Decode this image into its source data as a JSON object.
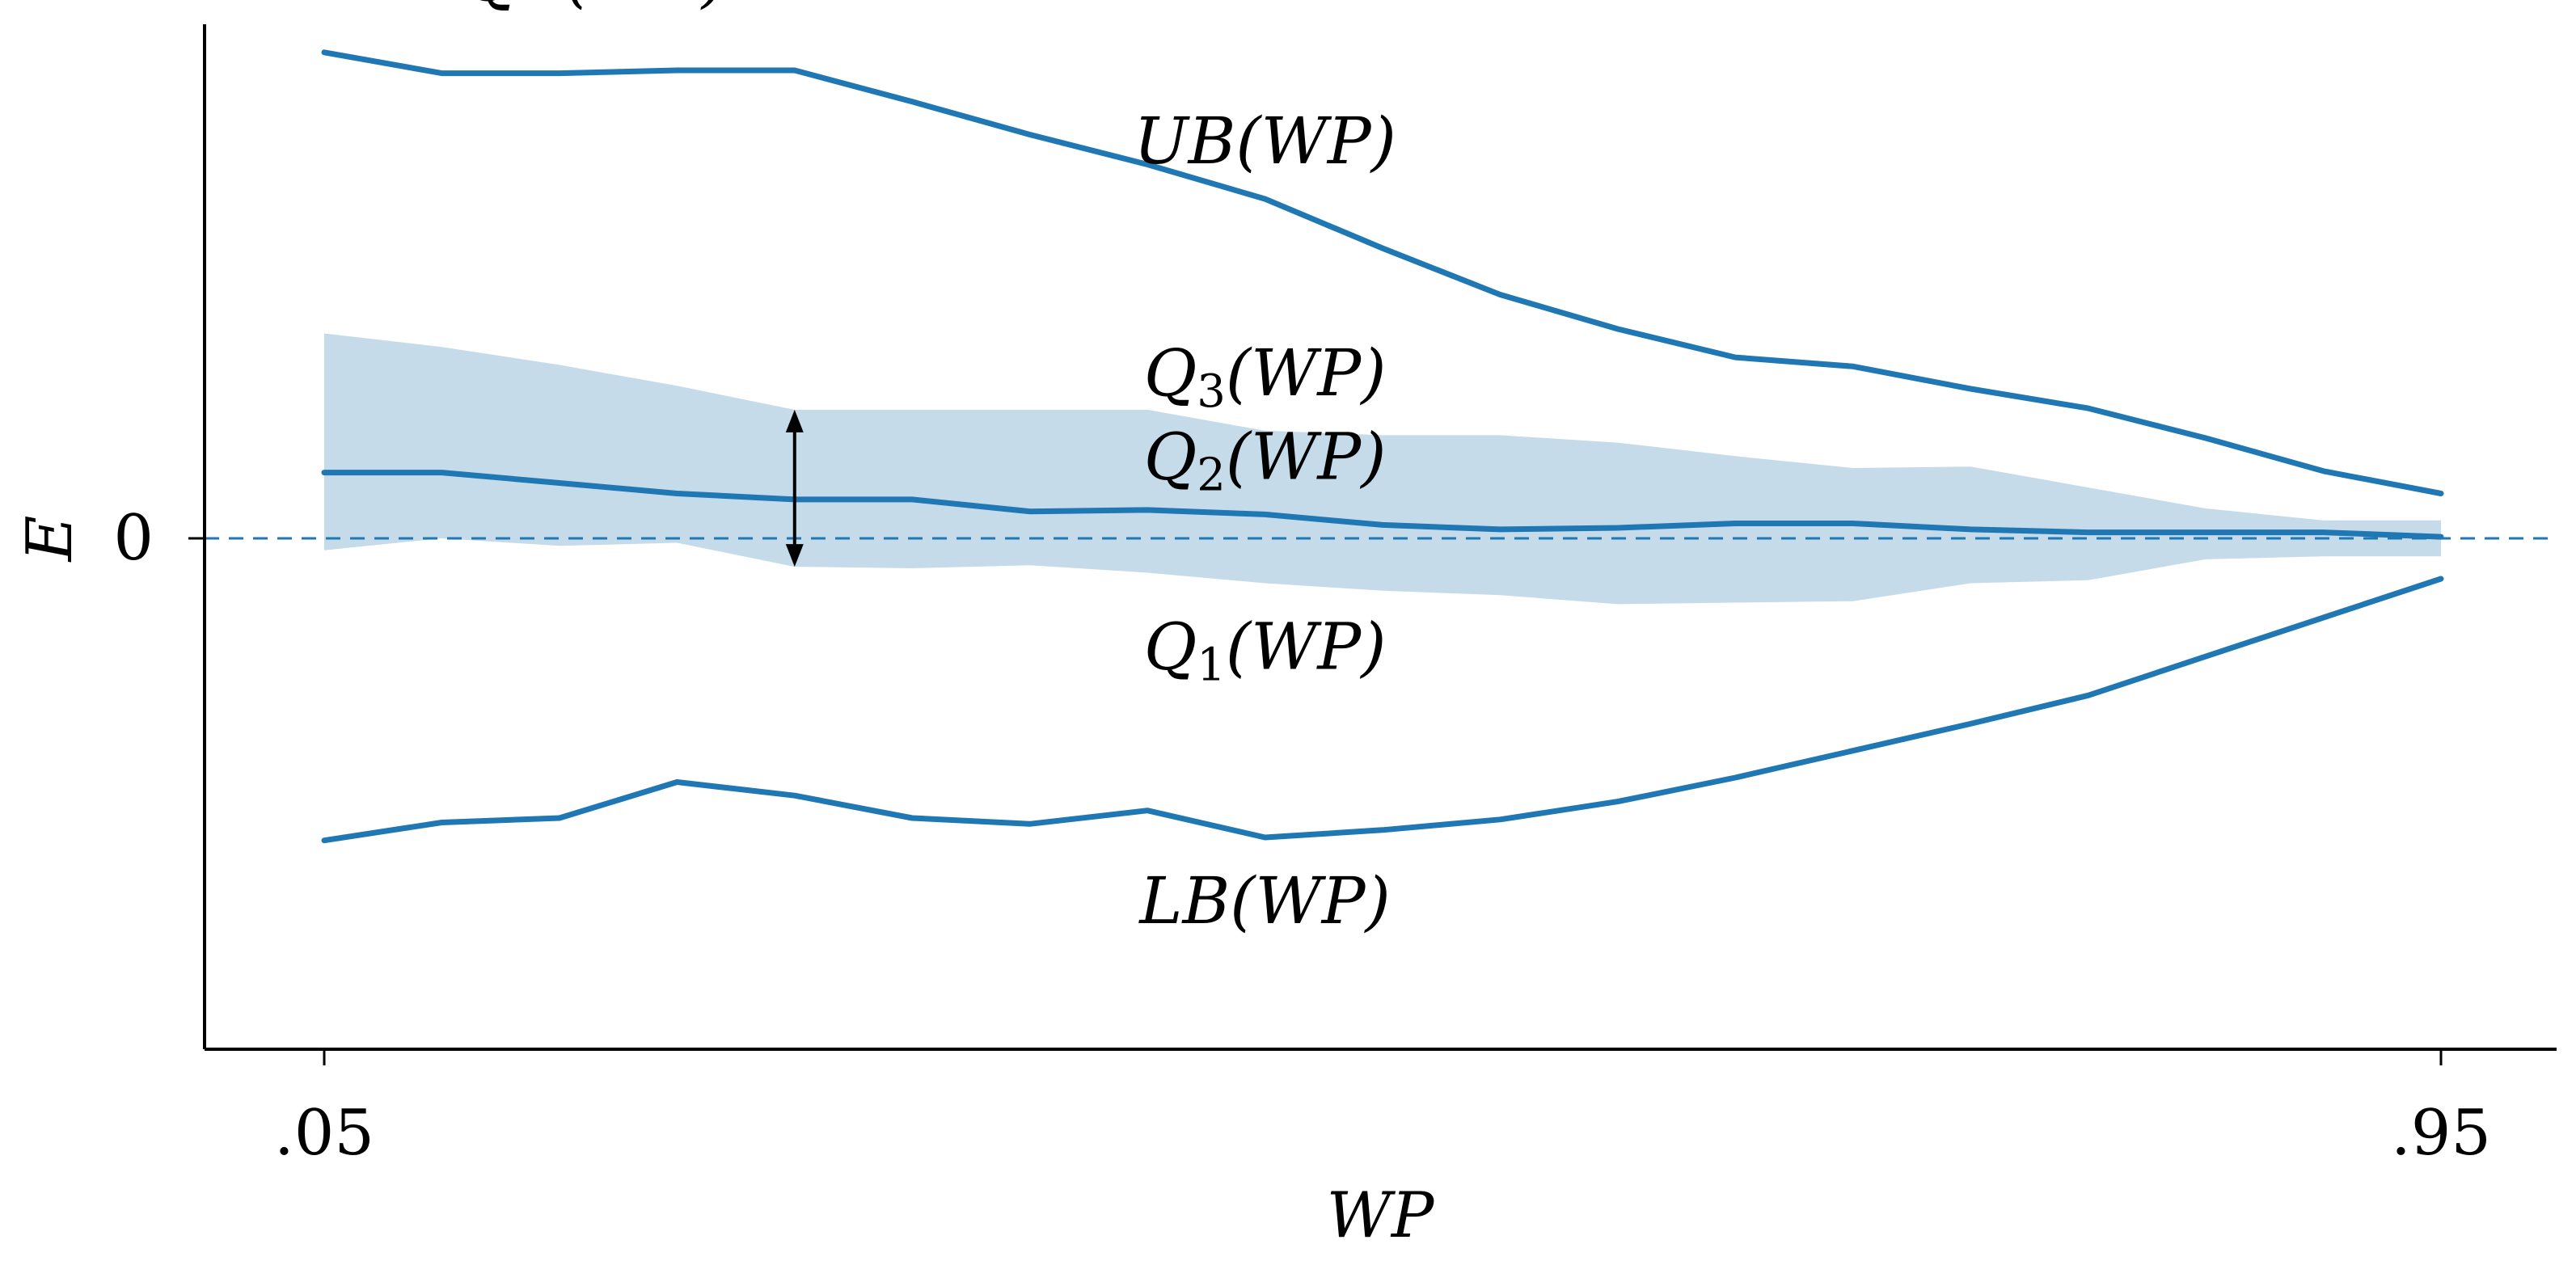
{
  "chart_data": {
    "type": "line",
    "title": "",
    "xlabel": "WP",
    "ylabel": "E",
    "x": [
      0.05,
      0.1,
      0.15,
      0.2,
      0.25,
      0.3,
      0.35,
      0.4,
      0.45,
      0.5,
      0.55,
      0.6,
      0.65,
      0.7,
      0.75,
      0.8,
      0.85,
      0.9,
      0.95
    ],
    "xticks": [
      {
        "value": 0.05,
        "label": ".05"
      },
      {
        "value": 0.95,
        "label": ".95"
      }
    ],
    "yticks": [
      {
        "value": 0,
        "label": "0"
      }
    ],
    "xlim": [
      0.0,
      1.0
    ],
    "ylim": [
      -3.4,
      3.4
    ],
    "grid": false,
    "reference_line": {
      "y": 0,
      "style": "dashed"
    },
    "colors": {
      "line": "#1f77b4",
      "band": "#c6dbea",
      "axis": "#000000",
      "arrow": "#000000"
    },
    "series": [
      {
        "name": "UB(WP)",
        "values": [
          3.25,
          3.11,
          3.11,
          3.13,
          3.13,
          2.92,
          2.7,
          2.5,
          2.27,
          1.94,
          1.63,
          1.4,
          1.21,
          1.15,
          1.0,
          0.87,
          0.67,
          0.45,
          0.3
        ]
      },
      {
        "name": "Q2(WP)",
        "values": [
          0.44,
          0.44,
          0.37,
          0.3,
          0.26,
          0.26,
          0.18,
          0.19,
          0.16,
          0.09,
          0.06,
          0.07,
          0.1,
          0.1,
          0.06,
          0.04,
          0.04,
          0.04,
          0.01
        ]
      },
      {
        "name": "LB(WP)",
        "values": [
          -2.02,
          -1.9,
          -1.87,
          -1.63,
          -1.72,
          -1.87,
          -1.91,
          -1.82,
          -2.0,
          -1.95,
          -1.88,
          -1.76,
          -1.6,
          -1.42,
          -1.24,
          -1.05,
          -0.79,
          -0.53,
          -0.27
        ]
      }
    ],
    "band": {
      "name": "IQR(WP)",
      "lower_name": "Q1(WP)",
      "upper_name": "Q3(WP)",
      "lower": [
        -0.08,
        0.0,
        -0.05,
        -0.03,
        -0.19,
        -0.2,
        -0.18,
        -0.23,
        -0.3,
        -0.35,
        -0.38,
        -0.44,
        -0.43,
        -0.42,
        -0.3,
        -0.28,
        -0.14,
        -0.12,
        -0.12
      ],
      "upper": [
        1.37,
        1.28,
        1.16,
        1.02,
        0.86,
        0.86,
        0.86,
        0.86,
        0.72,
        0.69,
        0.69,
        0.64,
        0.55,
        0.47,
        0.48,
        0.34,
        0.2,
        0.12,
        0.12
      ]
    },
    "iqr_arrow_x": 0.25,
    "annotations": [
      {
        "series": "UB(WP)",
        "at_x": 0.45,
        "position": "above"
      },
      {
        "series": "Q3(WP)",
        "at_x": 0.45,
        "position": "above"
      },
      {
        "series": "Q2(WP)",
        "at_x": 0.45,
        "position": "above"
      },
      {
        "series": "Q1(WP)",
        "at_x": 0.45,
        "position": "below"
      },
      {
        "series": "LB(WP)",
        "at_x": 0.45,
        "position": "below"
      },
      {
        "series": "IQR(WP)",
        "at_x": 0.16,
        "position": "left-of-arrow"
      }
    ]
  }
}
